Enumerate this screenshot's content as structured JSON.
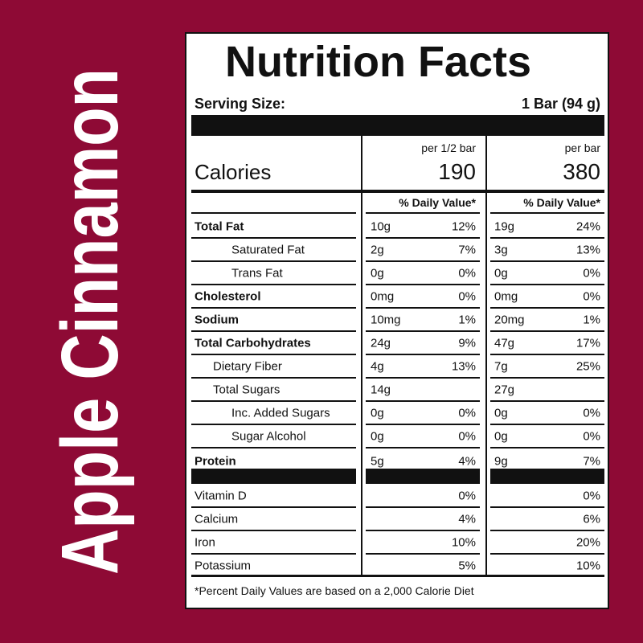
{
  "side_title": "Apple Cinnamon",
  "header": {
    "title": "Nutrition Facts",
    "serving_label": "Serving Size:",
    "serving_value": "1 Bar (94 g)"
  },
  "calories": {
    "label": "Calories",
    "columns": [
      {
        "heading": "per 1/2 bar",
        "value": "190"
      },
      {
        "heading": "per bar",
        "value": "380"
      }
    ]
  },
  "dv_heading": [
    "% Daily Value*",
    "% Daily Value*"
  ],
  "nutrients": [
    {
      "name": "Total Fat",
      "bold": true,
      "indent": 0,
      "half": {
        "amount": "10g",
        "dv": "12%"
      },
      "full": {
        "amount": "19g",
        "dv": "24%"
      }
    },
    {
      "name": "Saturated Fat",
      "bold": false,
      "indent": 2,
      "half": {
        "amount": "2g",
        "dv": "7%"
      },
      "full": {
        "amount": "3g",
        "dv": "13%"
      }
    },
    {
      "name": "Trans Fat",
      "bold": false,
      "indent": 2,
      "half": {
        "amount": "0g",
        "dv": "0%"
      },
      "full": {
        "amount": "0g",
        "dv": "0%"
      }
    },
    {
      "name": "Cholesterol",
      "bold": true,
      "indent": 0,
      "half": {
        "amount": "0mg",
        "dv": "0%"
      },
      "full": {
        "amount": "0mg",
        "dv": "0%"
      }
    },
    {
      "name": "Sodium",
      "bold": true,
      "indent": 0,
      "half": {
        "amount": "10mg",
        "dv": "1%"
      },
      "full": {
        "amount": "20mg",
        "dv": "1%"
      }
    },
    {
      "name": "Total Carbohydrates",
      "bold": true,
      "indent": 0,
      "half": {
        "amount": "24g",
        "dv": "9%"
      },
      "full": {
        "amount": "47g",
        "dv": "17%"
      }
    },
    {
      "name": "Dietary Fiber",
      "bold": false,
      "indent": 1,
      "half": {
        "amount": "4g",
        "dv": "13%"
      },
      "full": {
        "amount": "7g",
        "dv": "25%"
      }
    },
    {
      "name": "Total Sugars",
      "bold": false,
      "indent": 1,
      "half": {
        "amount": "14g"
      },
      "full": {
        "amount": "27g"
      }
    },
    {
      "name": "Inc. Added Sugars",
      "bold": false,
      "indent": 2,
      "half": {
        "amount": "0g",
        "dv": "0%"
      },
      "full": {
        "amount": "0g",
        "dv": "0%"
      }
    },
    {
      "name": "Sugar Alcohol",
      "bold": false,
      "indent": 2,
      "half": {
        "amount": "0g",
        "dv": "0%"
      },
      "full": {
        "amount": "0g",
        "dv": "0%"
      }
    },
    {
      "name": "Protein",
      "bold": true,
      "indent": 0,
      "half": {
        "amount": "5g",
        "dv": "4%"
      },
      "full": {
        "amount": "9g",
        "dv": "7%"
      }
    }
  ],
  "vitamins": [
    {
      "name": "Vitamin D",
      "half": "0%",
      "full": "0%"
    },
    {
      "name": "Calcium",
      "half": "4%",
      "full": "6%"
    },
    {
      "name": "Iron",
      "half": "10%",
      "full": "20%"
    },
    {
      "name": "Potassium",
      "half": "5%",
      "full": "10%"
    }
  ],
  "footnote": "*Percent Daily Values are based on a 2,000 Calorie Diet"
}
